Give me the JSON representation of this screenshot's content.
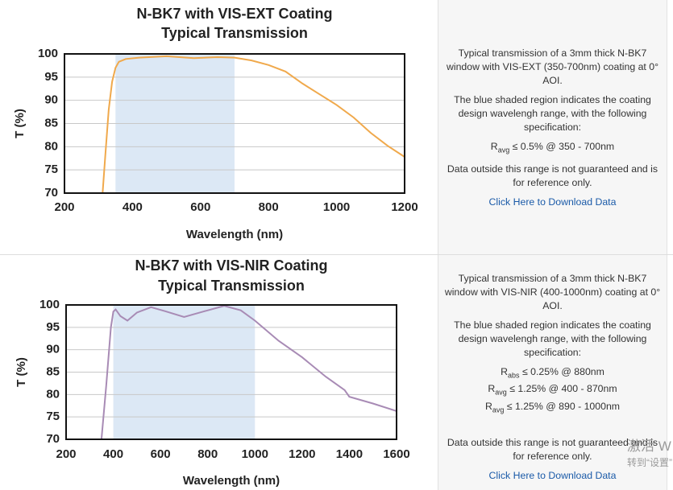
{
  "chart_data": [
    {
      "type": "line",
      "title": "N-BK7 with VIS-EXT Coating",
      "subtitle": "Typical Transmission",
      "x_label": "Wavelength (nm)",
      "y_label": "T (%)",
      "x": [
        312,
        320,
        330,
        340,
        350,
        360,
        380,
        420,
        500,
        580,
        650,
        700,
        750,
        800,
        850,
        900,
        950,
        1000,
        1050,
        1100,
        1150,
        1200
      ],
      "series": [
        {
          "color": "#f0a94c",
          "values": [
            70,
            78,
            88,
            94,
            97,
            98.3,
            98.9,
            99.2,
            99.5,
            99.1,
            99.3,
            99.2,
            98.6,
            97.6,
            96.2,
            93.6,
            91.3,
            89,
            86.3,
            83,
            80.2,
            77.8
          ]
        }
      ],
      "highlight_range": [
        350,
        700
      ],
      "highlight_color": "#dce8f5",
      "xlim": [
        200,
        1200
      ],
      "xticks": [
        200,
        400,
        600,
        800,
        1000,
        1200
      ],
      "ylim": [
        70,
        100
      ],
      "yticks": [
        70,
        75,
        80,
        85,
        90,
        95,
        100
      ],
      "grid": true
    },
    {
      "type": "line",
      "title": "N-BK7 with VIS-NIR Coating",
      "subtitle": "Typical Transmission",
      "x_label": "Wavelength (nm)",
      "y_label": "T (%)",
      "x": [
        350,
        370,
        390,
        400,
        410,
        430,
        460,
        500,
        560,
        620,
        700,
        780,
        870,
        940,
        1000,
        1100,
        1200,
        1300,
        1380,
        1400,
        1500,
        1600
      ],
      "series": [
        {
          "color": "#a88bb5",
          "values": [
            70,
            82,
            95,
            98.5,
            99,
            97.5,
            96.5,
            98.3,
            99.5,
            98.6,
            97.3,
            98.5,
            99.8,
            98.8,
            96.5,
            92,
            88.3,
            84,
            81,
            79.5,
            78,
            76.3
          ]
        }
      ],
      "highlight_range": [
        400,
        1000
      ],
      "highlight_color": "#dce8f5",
      "xlim": [
        200,
        1600
      ],
      "xticks": [
        200,
        400,
        600,
        800,
        1000,
        1200,
        1400,
        1600
      ],
      "ylim": [
        70,
        100
      ],
      "yticks": [
        70,
        75,
        80,
        85,
        90,
        95,
        100
      ],
      "grid": true
    }
  ],
  "descriptions": [
    {
      "intro": "Typical transmission of a 3mm thick N-BK7 window with VIS-EXT (350-700nm) coating at 0° AOI.",
      "shading": "The blue shaded region indicates the coating design wavelengh range, with the following specification:",
      "specs": [
        {
          "symbol": "R",
          "sub": "avg",
          "text": "≤ 0.5% @ 350 - 700nm"
        }
      ],
      "note": "Data outside this range is not guaranteed and is for reference only.",
      "link": "Click Here to Download Data"
    },
    {
      "intro": "Typical transmission of a 3mm thick N-BK7 window with VIS-NIR (400-1000nm) coating at 0° AOI.",
      "shading": "The blue shaded region indicates the coating design wavelengh range, with the following specification:",
      "specs": [
        {
          "symbol": "R",
          "sub": "abs",
          "text": "≤ 0.25% @ 880nm"
        },
        {
          "symbol": "R",
          "sub": "avg",
          "text": "≤ 1.25% @ 400 - 870nm"
        },
        {
          "symbol": "R",
          "sub": "avg",
          "text": "≤ 1.25% @ 890 - 1000nm"
        }
      ],
      "note": "Data outside this range is not guaranteed and is for reference only.",
      "link": "Click Here to Download Data"
    }
  ],
  "watermark": [
    "激活 W",
    "转到“设置”"
  ]
}
